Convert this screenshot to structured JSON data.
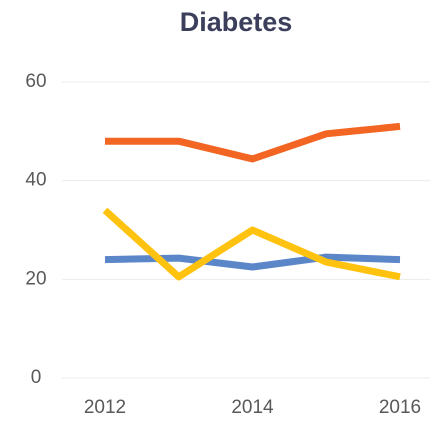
{
  "chart_data": {
    "type": "line",
    "title": "Diabetes",
    "x": [
      2012,
      2013,
      2014,
      2015,
      2016
    ],
    "xlim": [
      2012,
      2016
    ],
    "xticks": [
      2012,
      2014,
      2016
    ],
    "ylim": [
      0,
      60
    ],
    "yticks": [
      0,
      20,
      40,
      60
    ],
    "grid": true,
    "series": [
      {
        "color": "#f26522",
        "values": [
          48,
          48,
          44.4,
          49.5,
          51
        ]
      },
      {
        "color": "#5b87c9",
        "values": [
          24,
          24.3,
          22.5,
          24.5,
          24
        ]
      },
      {
        "color": "#ffc20e",
        "values": [
          34,
          20.5,
          30,
          23.5,
          20.5
        ]
      }
    ]
  }
}
